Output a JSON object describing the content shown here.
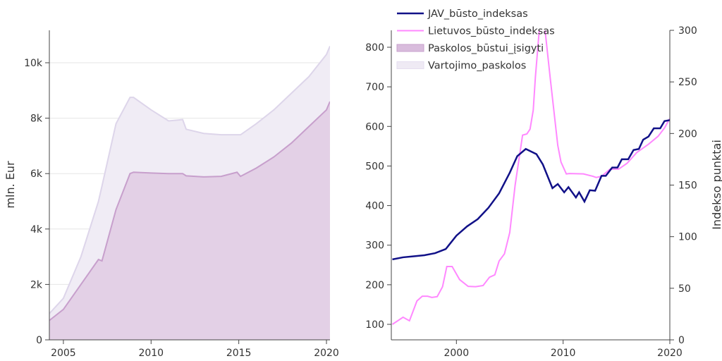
{
  "chart_data": [
    {
      "type": "area",
      "stacked": true,
      "ylabel": "mln. Eur",
      "xlim": [
        2004.2,
        2020.2
      ],
      "ylim": [
        0,
        11000
      ],
      "xticks": [
        2005,
        2010,
        2015,
        2020
      ],
      "xtick_labels": [
        "2005",
        "2010",
        "2015",
        "2020"
      ],
      "yticks": [
        0,
        2000,
        4000,
        6000,
        8000,
        10000
      ],
      "ytick_labels": [
        "0",
        "2k",
        "4k",
        "6k",
        "8k",
        "10k"
      ],
      "grid": true,
      "series": [
        {
          "name": "Paskolos_būstui_įsigyti",
          "color": "#c79fcc",
          "fill": "#e3d0e6",
          "x": [
            2004.2,
            2005,
            2006,
            2007,
            2007.2,
            2008,
            2008.8,
            2009,
            2010,
            2011,
            2011.8,
            2012,
            2013,
            2014,
            2014.9,
            2015.1,
            2016,
            2017,
            2018,
            2019,
            2020,
            2020.2
          ],
          "values": [
            700,
            1100,
            2000,
            2900,
            2850,
            4700,
            6000,
            6050,
            6020,
            6000,
            6000,
            5920,
            5880,
            5900,
            6050,
            5900,
            6200,
            6600,
            7100,
            7700,
            8300,
            8600
          ]
        },
        {
          "name": "Vartojimo_paskolos",
          "color": "#ddd5ea",
          "fill": "#f0ecf5",
          "x": [
            2004.2,
            2005,
            2006,
            2007,
            2007.2,
            2008,
            2008.8,
            2009,
            2010,
            2011,
            2011.8,
            2012,
            2013,
            2014,
            2014.9,
            2015.1,
            2016,
            2017,
            2018,
            2019,
            2020,
            2020.2
          ],
          "values": [
            250,
            400,
            1000,
            2100,
            2700,
            3100,
            2750,
            2700,
            2280,
            1900,
            1950,
            1680,
            1570,
            1500,
            1350,
            1500,
            1600,
            1700,
            1800,
            1800,
            2000,
            2000
          ]
        }
      ]
    },
    {
      "type": "line",
      "xlim": [
        1993.9,
        2020
      ],
      "xticks": [
        2000,
        2010,
        2020
      ],
      "xtick_labels": [
        "2000",
        "2010",
        "2020"
      ],
      "y_left": {
        "ylim": [
          78,
          860
        ],
        "ticks": [
          100,
          200,
          300,
          400,
          500,
          600,
          700,
          800
        ],
        "tick_labels": [
          "100",
          "200",
          "300",
          "400",
          "500",
          "600",
          "700",
          "800"
        ]
      },
      "y_right": {
        "ylabel": "Indekso punktai",
        "ylim": [
          0,
          300
        ],
        "ticks": [
          0,
          50,
          100,
          150,
          200,
          250,
          300
        ],
        "tick_labels": [
          "0",
          "50",
          "100",
          "150",
          "200",
          "250",
          "300"
        ]
      },
      "legend_position": "top-left",
      "series": [
        {
          "name": "JAV_būsto_indeksas",
          "axis": "right",
          "color": "#111188",
          "x": [
            1994,
            1995,
            1996,
            1997,
            1998,
            1999,
            2000,
            2001,
            2002,
            2003,
            2004,
            2005,
            2005.7,
            2006.5,
            2007.5,
            2008.1,
            2009,
            2009.5,
            2010.1,
            2010.5,
            2011.2,
            2011.5,
            2012,
            2012.5,
            2013,
            2013.6,
            2014,
            2014.6,
            2015.1,
            2015.5,
            2016.1,
            2016.6,
            2017.1,
            2017.5,
            2018,
            2018.5,
            2019.1,
            2019.5,
            2020
          ],
          "values": [
            78,
            80,
            81,
            82,
            84,
            88,
            101,
            110,
            117,
            128,
            142,
            162,
            178,
            185,
            180,
            170,
            147,
            151,
            143,
            148,
            138,
            143,
            134,
            145,
            144.5,
            159,
            159,
            167,
            167,
            175,
            175,
            184,
            185,
            194,
            197,
            205,
            205,
            212,
            213
          ]
        },
        {
          "name": "Lietuvos_būsto_indeksas",
          "axis": "left",
          "color": "#ff88ff",
          "x": [
            1994,
            1995,
            1995.6,
            1996.3,
            1996.8,
            1997.3,
            1997.7,
            1998.2,
            1998.7,
            1999.1,
            1999.6,
            2000.3,
            2001.1,
            2001.8,
            2002.5,
            2003.1,
            2003.6,
            2004,
            2004.5,
            2005,
            2005.5,
            2006.2,
            2006.6,
            2006.9,
            2007.2,
            2007.4,
            2008,
            2008.8,
            2009.5,
            2009.8,
            2010.3,
            2010.6,
            2011.9,
            2012.8,
            2013.1,
            2013.6,
            2014.4,
            2015.2,
            2016,
            2016.9,
            2018,
            2018.9,
            2019.5,
            2020
          ],
          "values": [
            100,
            118,
            109,
            159,
            171,
            171,
            168,
            170,
            195,
            246,
            246,
            213,
            196,
            195,
            198,
            219,
            225,
            260,
            278,
            332,
            451,
            578,
            581,
            593,
            641,
            724,
            920,
            720,
            552,
            510,
            480,
            481,
            480,
            474,
            471,
            474,
            492,
            492,
            507,
            534,
            555,
            575,
            596,
            620
          ]
        }
      ]
    }
  ],
  "legend": [
    "JAV_būsto_indeksas",
    "Lietuvos_būsto_indeksas",
    "Paskolos_būstui_įsigyti",
    "Vartojimo_paskolos"
  ]
}
